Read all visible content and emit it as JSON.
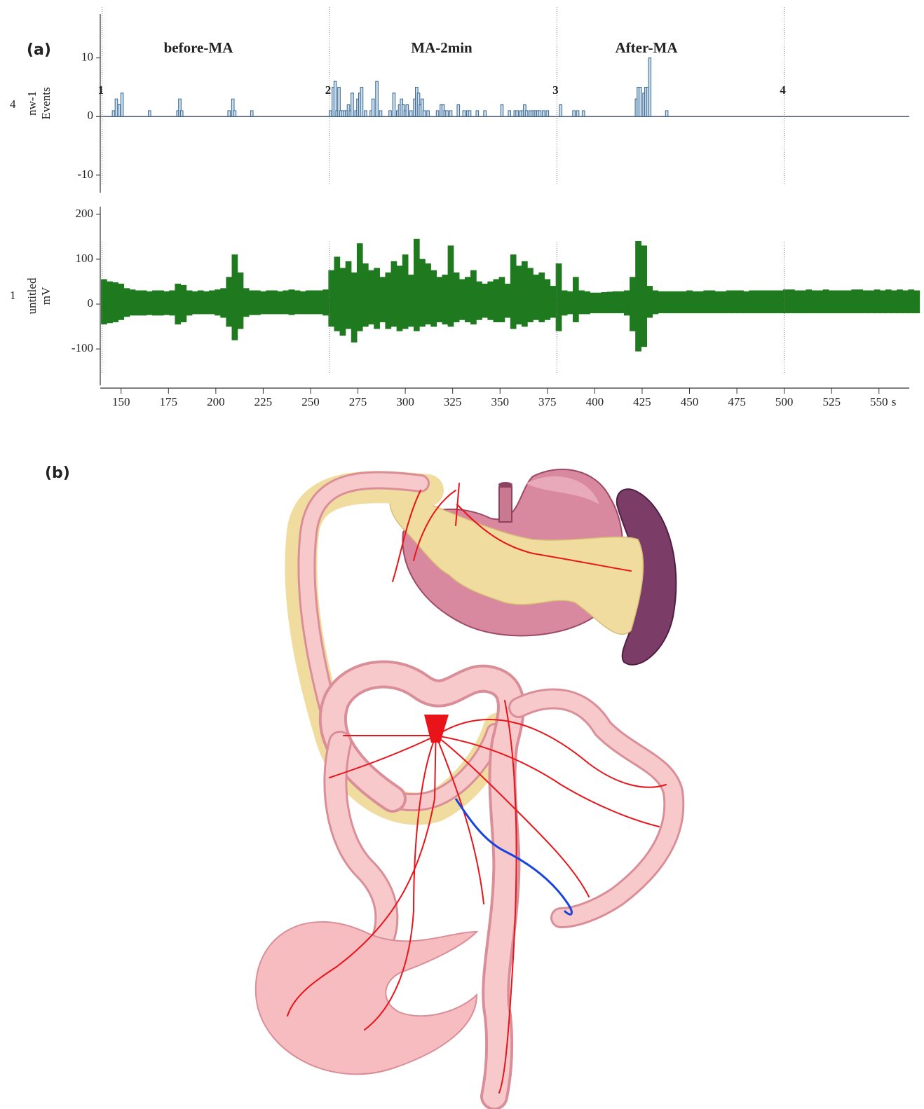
{
  "chart_data": [
    {
      "type": "bar",
      "panel_label": "(a)",
      "channel": "4",
      "ylabel_lines": [
        "nw-1",
        "Events"
      ],
      "sections": [
        "before-MA",
        "MA-2min",
        "After-MA"
      ],
      "markers": [
        {
          "value": 140,
          "label": "1"
        },
        {
          "value": 260,
          "label": "2"
        },
        {
          "value": 380,
          "label": "3"
        },
        {
          "value": 500,
          "label": "4"
        }
      ],
      "color": "#c9def0",
      "edge_color": "#3b6589",
      "xlim": [
        139,
        566
      ],
      "ylim": [
        -13,
        17.5
      ],
      "yticks": [
        -10,
        0,
        10
      ],
      "x": [
        146,
        147.5,
        149,
        150.5,
        165,
        180,
        181,
        182,
        207,
        209,
        210,
        219,
        260.5,
        262,
        263,
        264,
        265,
        266,
        267,
        268,
        269,
        270,
        271,
        272,
        274,
        275,
        276,
        277,
        279,
        282,
        283,
        285,
        287,
        292,
        294,
        296,
        297,
        298,
        299,
        300,
        301,
        303,
        305,
        306,
        307,
        308,
        309,
        310,
        312,
        317,
        319,
        320,
        321,
        322,
        324,
        328,
        331,
        333,
        334,
        338,
        342,
        351,
        355,
        358,
        359,
        361,
        362,
        363,
        364,
        366,
        367,
        368,
        369,
        370,
        371,
        373,
        375,
        382,
        389,
        391,
        394,
        422,
        423,
        424,
        426,
        427,
        428,
        429,
        438
      ],
      "values": [
        1,
        3,
        2,
        4,
        1,
        1,
        3,
        1,
        1,
        3,
        1,
        1,
        1,
        5,
        6,
        1,
        5,
        1,
        1,
        1,
        1,
        2,
        1,
        4,
        1,
        3,
        4,
        5,
        1,
        1,
        3,
        6,
        1,
        1,
        4,
        1,
        2,
        3,
        2,
        1,
        2,
        1,
        3,
        5,
        4,
        2,
        3,
        1,
        1,
        1,
        2,
        2,
        1,
        1,
        1,
        2,
        1,
        1,
        1,
        1,
        1,
        2,
        1,
        1,
        1,
        1,
        1,
        2,
        1,
        1,
        1,
        1,
        1,
        1,
        1,
        1,
        1,
        2,
        1,
        1,
        1,
        3,
        5,
        5,
        4,
        5,
        5,
        10,
        1
      ]
    },
    {
      "type": "range",
      "channel": "1",
      "ylabel_lines": [
        "untitled",
        "mV"
      ],
      "xlabel": "s",
      "xlim": [
        139,
        566
      ],
      "ylim": [
        -181,
        217
      ],
      "yticks": [
        -100,
        0,
        100,
        200
      ],
      "xticks": [
        150,
        175,
        200,
        225,
        250,
        275,
        300,
        325,
        350,
        375,
        400,
        425,
        450,
        475,
        500,
        525,
        550
      ],
      "x": [
        141,
        144,
        147,
        150,
        153,
        156,
        159,
        162,
        165,
        168,
        171,
        174,
        177,
        180,
        183,
        186,
        189,
        192,
        195,
        198,
        201,
        204,
        207,
        210,
        213,
        216,
        219,
        222,
        225,
        228,
        231,
        234,
        237,
        240,
        243,
        246,
        249,
        252,
        255,
        258,
        261,
        264,
        267,
        270,
        273,
        276,
        279,
        282,
        285,
        288,
        291,
        294,
        297,
        300,
        303,
        306,
        309,
        312,
        315,
        318,
        321,
        324,
        327,
        330,
        333,
        336,
        339,
        342,
        345,
        348,
        351,
        354,
        357,
        360,
        363,
        366,
        369,
        372,
        375,
        378,
        381,
        384,
        387,
        390,
        393,
        396,
        399,
        402,
        405,
        408,
        411,
        414,
        417,
        420,
        423,
        426,
        429,
        432,
        435,
        438,
        441,
        444,
        447,
        450,
        453,
        456,
        459,
        462,
        465,
        468,
        471,
        474,
        477,
        480,
        483,
        486,
        489,
        492,
        495,
        498,
        501,
        504,
        507,
        510,
        513,
        516,
        519,
        522,
        525,
        528,
        531,
        534,
        537,
        540,
        543,
        546,
        549,
        552,
        555,
        558,
        561,
        564,
        567,
        570
      ],
      "series": [
        {
          "color": "#1f7a1f",
          "values": [
            55,
            50,
            48,
            45,
            35,
            32,
            30,
            30,
            28,
            30,
            30,
            28,
            30,
            45,
            42,
            30,
            28,
            30,
            28,
            30,
            32,
            35,
            60,
            110,
            70,
            35,
            30,
            30,
            28,
            30,
            30,
            28,
            30,
            32,
            30,
            28,
            30,
            30,
            30,
            32,
            75,
            105,
            80,
            95,
            70,
            135,
            90,
            75,
            80,
            60,
            70,
            95,
            85,
            110,
            65,
            145,
            100,
            90,
            75,
            60,
            65,
            130,
            70,
            55,
            60,
            75,
            50,
            45,
            50,
            55,
            60,
            45,
            110,
            85,
            95,
            80,
            65,
            70,
            55,
            40,
            90,
            30,
            28,
            60,
            30,
            28,
            25,
            25,
            26,
            27,
            28,
            28,
            30,
            60,
            140,
            130,
            40,
            30,
            28,
            28,
            28,
            28,
            28,
            30,
            28,
            28,
            30,
            30,
            28,
            28,
            30,
            30,
            30,
            28,
            30,
            30,
            30,
            30,
            30,
            30,
            32,
            32,
            30,
            30,
            32,
            30,
            30,
            32,
            30,
            30,
            30,
            30,
            32,
            32,
            30,
            30,
            32,
            30,
            32,
            30,
            32,
            30,
            32,
            30
          ]
        },
        {
          "color": "#1f7a1f",
          "values": [
            -45,
            -42,
            -40,
            -35,
            -28,
            -25,
            -25,
            -25,
            -24,
            -25,
            -25,
            -24,
            -25,
            -45,
            -40,
            -25,
            -22,
            -22,
            -22,
            -22,
            -25,
            -30,
            -50,
            -80,
            -55,
            -28,
            -24,
            -24,
            -22,
            -22,
            -22,
            -22,
            -22,
            -24,
            -22,
            -22,
            -22,
            -22,
            -22,
            -25,
            -50,
            -60,
            -70,
            -55,
            -85,
            -60,
            -50,
            -45,
            -55,
            -40,
            -55,
            -50,
            -60,
            -55,
            -50,
            -60,
            -50,
            -45,
            -50,
            -40,
            -45,
            -50,
            -40,
            -35,
            -40,
            -45,
            -35,
            -30,
            -35,
            -40,
            -40,
            -30,
            -55,
            -45,
            -50,
            -40,
            -35,
            -40,
            -35,
            -30,
            -60,
            -25,
            -22,
            -40,
            -22,
            -22,
            -20,
            -20,
            -20,
            -20,
            -20,
            -20,
            -25,
            -60,
            -105,
            -95,
            -30,
            -22,
            -20,
            -20,
            -20,
            -20,
            -20,
            -20,
            -20,
            -20,
            -20,
            -20,
            -20,
            -20,
            -20,
            -20,
            -20,
            -20,
            -20,
            -20,
            -20,
            -20,
            -20,
            -20,
            -20,
            -20,
            -20,
            -20,
            -20,
            -20,
            -20,
            -20,
            -20,
            -20,
            -20,
            -20,
            -20,
            -20,
            -20,
            -20,
            -20,
            -20,
            -20,
            -20,
            -20,
            -20,
            -20,
            -20
          ]
        }
      ]
    }
  ],
  "figure_b": {
    "label": "(b)"
  }
}
